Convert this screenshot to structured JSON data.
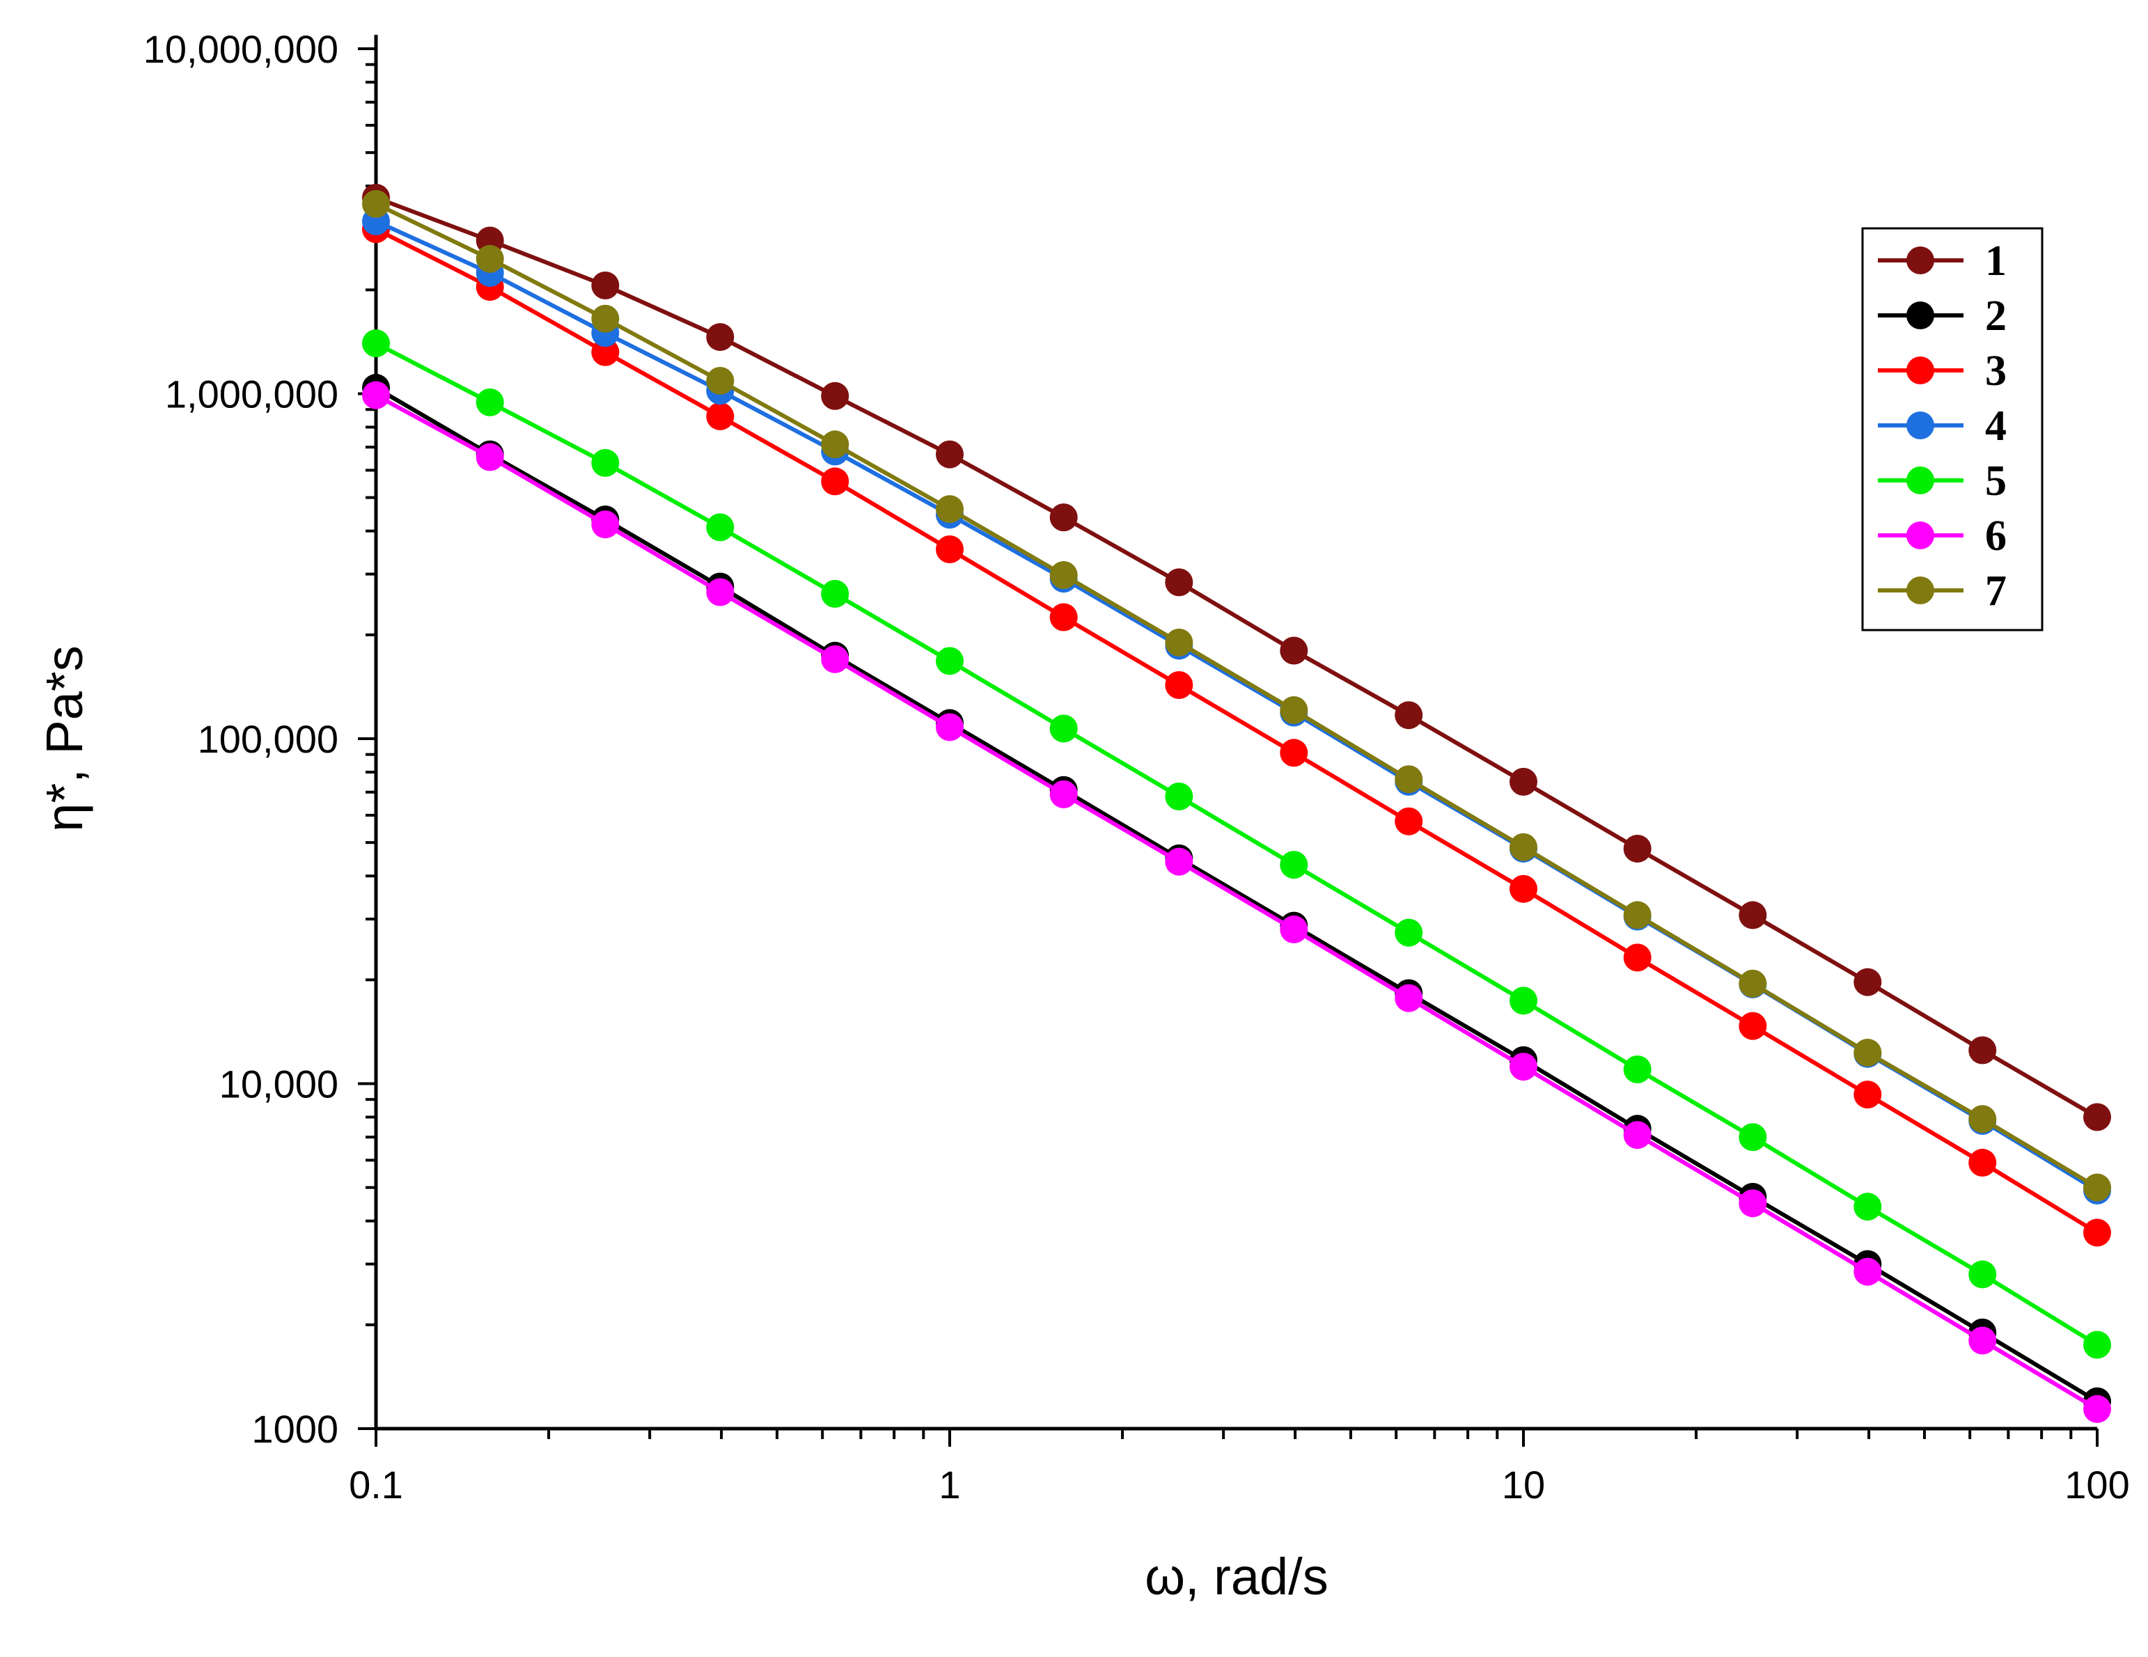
{
  "chart_data": {
    "type": "line",
    "title": "",
    "xlabel": "ω, rad/s",
    "ylabel": "η*, Pa*s",
    "x_scale": "log",
    "y_scale": "log",
    "xlim": [
      0.1,
      100
    ],
    "ylim": [
      1000,
      10000000
    ],
    "x_ticks": [
      0.1,
      1,
      10,
      100
    ],
    "x_tick_labels": [
      "0.1",
      "1",
      "10",
      "100"
    ],
    "y_ticks": [
      1000,
      10000,
      100000,
      1000000,
      10000000
    ],
    "y_tick_labels": [
      "1000",
      "10,000",
      "100,000",
      "1,000,000",
      "10,000,000"
    ],
    "legend_position": "top-right",
    "grid": false,
    "x": [
      0.1,
      0.158,
      0.251,
      0.398,
      0.631,
      1,
      1.58,
      2.51,
      3.98,
      6.31,
      10,
      15.8,
      25.1,
      39.8,
      63.1,
      100
    ],
    "series": [
      {
        "name": "1",
        "color": "#7f1010",
        "values": [
          3700000,
          2780000,
          2060000,
          1460000,
          985000,
          667000,
          438000,
          284000,
          180000,
          117000,
          75000,
          48000,
          30800,
          19700,
          12500,
          8000
        ]
      },
      {
        "name": "2",
        "color": "#000000",
        "values": [
          1040000,
          667000,
          432000,
          276000,
          174000,
          111000,
          71000,
          45000,
          28700,
          18300,
          11700,
          7400,
          4700,
          3000,
          1900,
          1200
        ]
      },
      {
        "name": "3",
        "color": "#ff0000",
        "values": [
          3000000,
          2040000,
          1320000,
          860000,
          557000,
          354000,
          225000,
          143000,
          91000,
          57600,
          36700,
          23200,
          14700,
          9300,
          5900,
          3700
        ]
      },
      {
        "name": "4",
        "color": "#1e6fe0",
        "values": [
          3160000,
          2240000,
          1500000,
          1020000,
          680000,
          446000,
          291000,
          186000,
          119000,
          75000,
          48000,
          30500,
          19400,
          12200,
          7800,
          4900
        ]
      },
      {
        "name": "5",
        "color": "#00ee00",
        "values": [
          1400000,
          944000,
          630000,
          410000,
          263000,
          168000,
          107000,
          68000,
          43100,
          27400,
          17400,
          11000,
          7000,
          4400,
          2800,
          1750
        ]
      },
      {
        "name": "6",
        "color": "#ff00ff",
        "values": [
          990000,
          655000,
          418000,
          266000,
          170000,
          108000,
          69000,
          44000,
          28000,
          17700,
          11200,
          7100,
          4500,
          2850,
          1800,
          1140
        ]
      },
      {
        "name": "7",
        "color": "#807a10",
        "values": [
          3550000,
          2460000,
          1650000,
          1090000,
          713000,
          463000,
          298000,
          190000,
          121000,
          76300,
          48500,
          30800,
          19500,
          12300,
          7900,
          5000
        ]
      }
    ]
  }
}
